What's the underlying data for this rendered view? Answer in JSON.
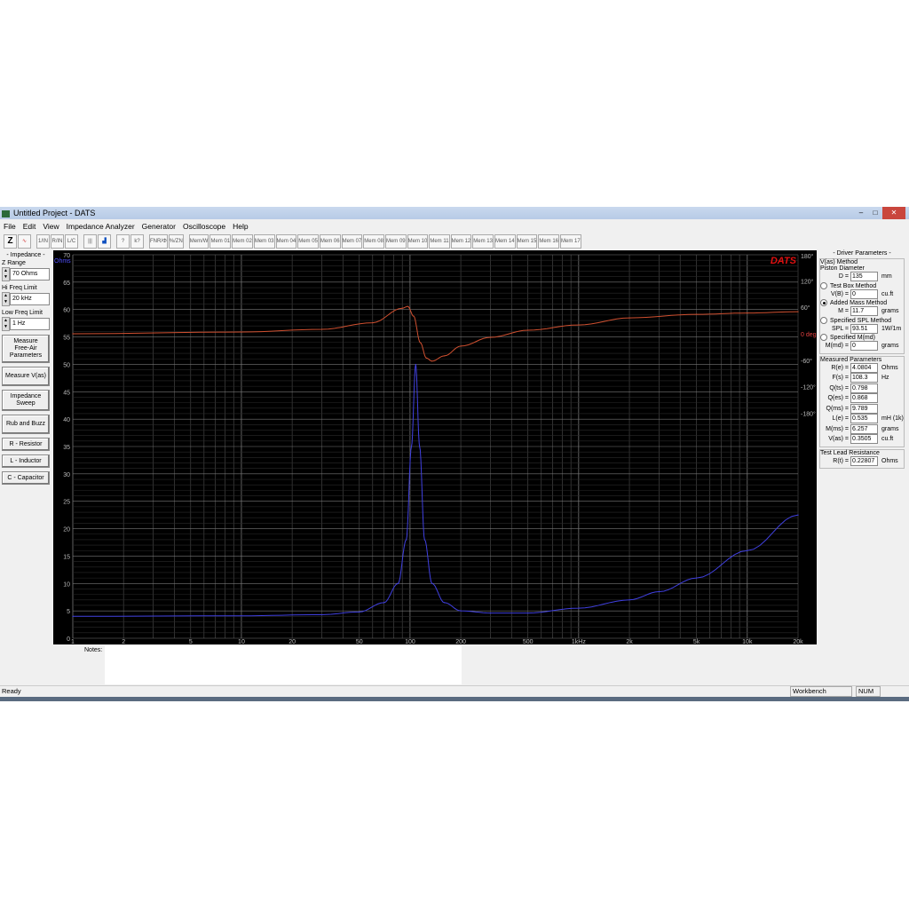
{
  "window": {
    "title": "Untitled Project - DATS",
    "controls": [
      "–",
      "□",
      "✕"
    ]
  },
  "menu": [
    "File",
    "Edit",
    "View",
    "Impedance Analyzer",
    "Generator",
    "Oscilloscope",
    "Help"
  ],
  "toolbar": {
    "items": [
      "Z",
      "∿",
      "1/IN",
      "R/IN",
      "L/C",
      "|||",
      "▟",
      "?",
      "k?",
      "FNR/Φ",
      "%/ZN",
      "Mem/W",
      "Mem 01",
      "Mem 02",
      "Mem 03",
      "Mem 04",
      "Mem 05",
      "Mem 06",
      "Mem 07",
      "Mem 08",
      "Mem 09",
      "Mem 10",
      "Mem 11",
      "Mem 12",
      "Mem 13",
      "Mem 14",
      "Mem 15",
      "Mem 16",
      "Mem 17"
    ]
  },
  "left": {
    "header": "- Impedance -",
    "z_range": {
      "label": "Z Range",
      "value": "70 Ohms"
    },
    "hi_freq": {
      "label": "Hi Freq Limit",
      "value": "20 kHz"
    },
    "low_freq": {
      "label": "Low Freq Limit",
      "value": "1 Hz"
    },
    "buttons": [
      "Measure\nFree-Air\nParameters",
      "Measure V(as)",
      "Impedance\nSweep",
      "Rub and Buzz",
      "R - Resistor",
      "L - Inductor",
      "C - Capacitor"
    ]
  },
  "chart_data": {
    "type": "line",
    "logo": "DATS",
    "x_scale": "log",
    "xlim": [
      1,
      20000
    ],
    "x_ticks": [
      "1",
      "2",
      "5",
      "10",
      "20",
      "50",
      "100",
      "200",
      "500",
      "1kHz",
      "2k",
      "5k",
      "10k",
      "20k"
    ],
    "y_left": {
      "unit": "Ohms",
      "ylim": [
        0,
        70
      ],
      "ticks": [
        "70",
        "65",
        "60",
        "55",
        "50",
        "45",
        "40",
        "35",
        "30",
        "25",
        "20",
        "15",
        "10",
        "5",
        "0"
      ]
    },
    "y_right": {
      "unit": "deg",
      "ylim": [
        -180,
        180
      ],
      "ticks": [
        "180°",
        "120°",
        "60°",
        "0 deg",
        "-60°",
        "-120°",
        "-180°"
      ]
    },
    "grid": true,
    "series": [
      {
        "color": "#4040e0",
        "x": [
          1,
          10,
          30,
          50,
          70,
          85,
          95,
          102,
          108,
          114,
          122,
          135,
          160,
          200,
          300,
          500,
          1000,
          2000,
          3000,
          5000,
          10000,
          20000
        ],
        "y": [
          4.0,
          4.1,
          4.3,
          4.8,
          6.5,
          10,
          18,
          35,
          50,
          35,
          18,
          10,
          6.5,
          5,
          4.6,
          4.6,
          5.5,
          7,
          8.5,
          11,
          16,
          22.5
        ]
      },
      {
        "color": "#d05030",
        "x": [
          1,
          10,
          30,
          60,
          90,
          97,
          105,
          115,
          125,
          135,
          160,
          200,
          300,
          500,
          1000,
          2000,
          5000,
          10000,
          20000
        ],
        "y": [
          0,
          4,
          10,
          25,
          58,
          62,
          40,
          -20,
          -55,
          -62,
          -50,
          -28,
          -8,
          8,
          20,
          36,
          44,
          47,
          50
        ]
      }
    ]
  },
  "right": {
    "header": "- Driver Parameters -",
    "vas_method": "V(as) Method",
    "piston": "Piston Diameter",
    "D": {
      "label": "D =",
      "value": "135",
      "unit": "mm"
    },
    "test_box": "Test Box Method",
    "VB": {
      "label": "V(B) =",
      "value": "0",
      "unit": "cu.ft"
    },
    "added_mass": "Added Mass Method",
    "M": {
      "label": "M =",
      "value": "11.7",
      "unit": "grams"
    },
    "spl_method": "Specified SPL Method",
    "SPL": {
      "label": "SPL =",
      "value": "93.51",
      "unit": "1W/1m"
    },
    "mmd_method": "Specified M(md)",
    "Mmd": {
      "label": "M(md) =",
      "value": "0",
      "unit": "grams"
    },
    "measured": "Measured Parameters",
    "params": [
      {
        "label": "R(e) =",
        "value": "4.0804",
        "unit": "Ohms"
      },
      {
        "label": "F(s) =",
        "value": "108.3",
        "unit": "Hz"
      },
      {
        "label": "Q(ts) =",
        "value": "0.798",
        "unit": ""
      },
      {
        "label": "Q(es) =",
        "value": "0.868",
        "unit": ""
      },
      {
        "label": "Q(ms) =",
        "value": "9.789",
        "unit": ""
      },
      {
        "label": "L(e) =",
        "value": "0.535",
        "unit": "mH (1k)"
      },
      {
        "label": "M(ms) =",
        "value": "6.257",
        "unit": "grams"
      },
      {
        "label": "V(as) =",
        "value": "0.3505",
        "unit": "cu.ft"
      }
    ],
    "lead": "Test Lead Resistance",
    "Rt": {
      "label": "R(t) =",
      "value": "0.22807",
      "unit": "Ohms"
    }
  },
  "notes": {
    "label": "Notes:",
    "value": ""
  },
  "status": {
    "text": "Ready",
    "mode": "Workbench",
    "num": "NUM"
  }
}
